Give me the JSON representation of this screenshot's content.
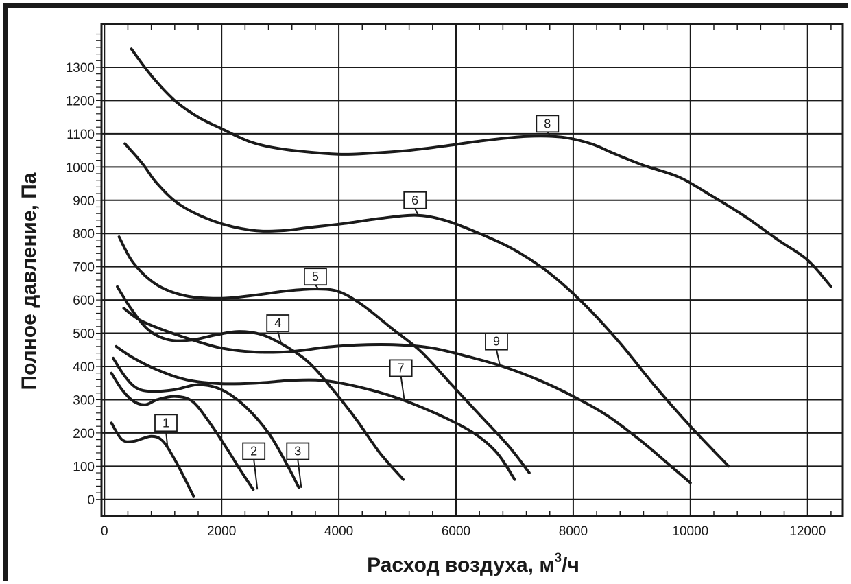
{
  "chart_data": {
    "type": "line",
    "xlabel": "Расход воздуха, м",
    "xlabel_sup": "3",
    "xlabel_suffix": "/ч",
    "ylabel": "Полное давление, Па",
    "xlim": [
      -50,
      12600
    ],
    "ylim": [
      -50,
      1430
    ],
    "x_ticks": [
      0,
      2000,
      4000,
      6000,
      8000,
      10000,
      12000
    ],
    "y_ticks": [
      0,
      100,
      200,
      300,
      400,
      500,
      600,
      700,
      800,
      900,
      1000,
      1100,
      1200,
      1300
    ],
    "grid": true,
    "legend": "none",
    "line_color": "#1a1a1a",
    "series": [
      {
        "name": "1",
        "label_at": [
          1050,
          230
        ],
        "points": [
          [
            120,
            230
          ],
          [
            300,
            180
          ],
          [
            500,
            175
          ],
          [
            800,
            190
          ],
          [
            1000,
            175
          ],
          [
            1200,
            120
          ],
          [
            1350,
            70
          ],
          [
            1520,
            10
          ]
        ]
      },
      {
        "name": "2",
        "label_at": [
          2550,
          145
        ],
        "points": [
          [
            120,
            380
          ],
          [
            300,
            330
          ],
          [
            500,
            295
          ],
          [
            700,
            285
          ],
          [
            900,
            300
          ],
          [
            1200,
            310
          ],
          [
            1500,
            295
          ],
          [
            1800,
            230
          ],
          [
            2100,
            150
          ],
          [
            2350,
            80
          ],
          [
            2540,
            30
          ]
        ]
      },
      {
        "name": "3",
        "label_at": [
          3300,
          145
        ],
        "points": [
          [
            150,
            425
          ],
          [
            350,
            370
          ],
          [
            550,
            335
          ],
          [
            800,
            325
          ],
          [
            1200,
            330
          ],
          [
            1600,
            345
          ],
          [
            2000,
            330
          ],
          [
            2400,
            280
          ],
          [
            2800,
            200
          ],
          [
            3100,
            110
          ],
          [
            3320,
            35
          ]
        ]
      },
      {
        "name": "4",
        "label_at": [
          2960,
          530
        ],
        "points": [
          [
            220,
            640
          ],
          [
            450,
            575
          ],
          [
            750,
            510
          ],
          [
            1100,
            480
          ],
          [
            1500,
            480
          ],
          [
            1900,
            495
          ],
          [
            2300,
            505
          ],
          [
            2700,
            495
          ],
          [
            3100,
            460
          ],
          [
            3500,
            410
          ],
          [
            3900,
            330
          ],
          [
            4300,
            240
          ],
          [
            4700,
            140
          ],
          [
            5100,
            60
          ]
        ]
      },
      {
        "name": "5",
        "label_at": [
          3600,
          670
        ],
        "points": [
          [
            250,
            790
          ],
          [
            500,
            710
          ],
          [
            900,
            645
          ],
          [
            1400,
            612
          ],
          [
            2000,
            605
          ],
          [
            2600,
            615
          ],
          [
            3100,
            627
          ],
          [
            3600,
            633
          ],
          [
            4000,
            625
          ],
          [
            4400,
            585
          ],
          [
            4900,
            515
          ],
          [
            5400,
            445
          ],
          [
            5900,
            350
          ],
          [
            6400,
            255
          ],
          [
            6900,
            160
          ],
          [
            7250,
            80
          ]
        ]
      },
      {
        "name": "6",
        "label_at": [
          5300,
          900
        ],
        "points": [
          [
            350,
            1070
          ],
          [
            650,
            1010
          ],
          [
            900,
            950
          ],
          [
            1300,
            885
          ],
          [
            1900,
            835
          ],
          [
            2500,
            810
          ],
          [
            3000,
            808
          ],
          [
            3500,
            818
          ],
          [
            4100,
            830
          ],
          [
            4700,
            845
          ],
          [
            5300,
            855
          ],
          [
            5800,
            840
          ],
          [
            6400,
            800
          ],
          [
            7000,
            750
          ],
          [
            7600,
            680
          ],
          [
            8200,
            585
          ],
          [
            8800,
            470
          ],
          [
            9400,
            340
          ],
          [
            10000,
            220
          ],
          [
            10650,
            100
          ]
        ]
      },
      {
        "name": "7",
        "label_at": [
          5060,
          395
        ],
        "points": [
          [
            200,
            460
          ],
          [
            500,
            425
          ],
          [
            900,
            390
          ],
          [
            1400,
            360
          ],
          [
            2000,
            348
          ],
          [
            2600,
            350
          ],
          [
            3200,
            358
          ],
          [
            3700,
            358
          ],
          [
            4300,
            340
          ],
          [
            5000,
            305
          ],
          [
            5700,
            255
          ],
          [
            6300,
            200
          ],
          [
            6700,
            140
          ],
          [
            7000,
            60
          ]
        ]
      },
      {
        "name": "8",
        "label_at": [
          7560,
          1130
        ],
        "points": [
          [
            460,
            1355
          ],
          [
            800,
            1275
          ],
          [
            1200,
            1200
          ],
          [
            1600,
            1150
          ],
          [
            2000,
            1115
          ],
          [
            2500,
            1075
          ],
          [
            3000,
            1055
          ],
          [
            3600,
            1043
          ],
          [
            4100,
            1038
          ],
          [
            4600,
            1042
          ],
          [
            5200,
            1050
          ],
          [
            5800,
            1063
          ],
          [
            6500,
            1080
          ],
          [
            7200,
            1092
          ],
          [
            7800,
            1090
          ],
          [
            8300,
            1070
          ],
          [
            8700,
            1040
          ],
          [
            9200,
            1005
          ],
          [
            9800,
            970
          ],
          [
            10300,
            920
          ],
          [
            10900,
            855
          ],
          [
            11500,
            780
          ],
          [
            12000,
            720
          ],
          [
            12400,
            640
          ]
        ]
      },
      {
        "name": "9",
        "label_at": [
          6690,
          475
        ],
        "points": [
          [
            330,
            575
          ],
          [
            600,
            540
          ],
          [
            1000,
            510
          ],
          [
            1500,
            480
          ],
          [
            2000,
            455
          ],
          [
            2600,
            443
          ],
          [
            3200,
            445
          ],
          [
            3800,
            458
          ],
          [
            4400,
            465
          ],
          [
            5000,
            465
          ],
          [
            5600,
            455
          ],
          [
            6200,
            430
          ],
          [
            6800,
            400
          ],
          [
            7400,
            360
          ],
          [
            8000,
            310
          ],
          [
            8600,
            250
          ],
          [
            9200,
            170
          ],
          [
            9700,
            95
          ],
          [
            10000,
            50
          ]
        ]
      }
    ]
  }
}
